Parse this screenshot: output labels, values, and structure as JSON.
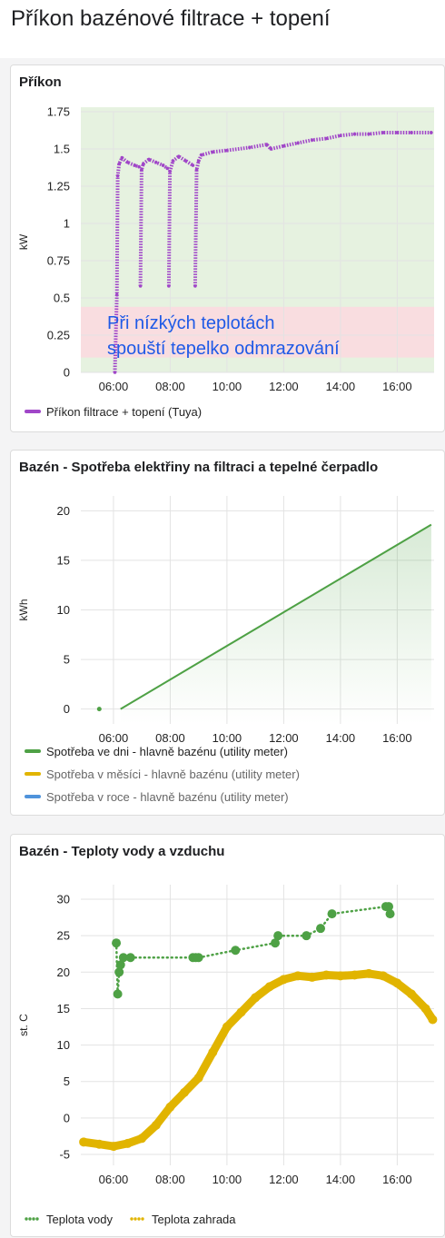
{
  "page": {
    "title": "Příkon bazénové filtrace + topení"
  },
  "colors": {
    "purple": "#a046c8",
    "green": "#4ea145",
    "yellow": "#e1b400",
    "blue": "#4f93db",
    "band_green": "#e6f2e0",
    "band_red": "#f9dde0",
    "annotation": "#1f5ae6"
  },
  "chart_data": [
    {
      "type": "scatter",
      "title": "Příkon",
      "xlabel": "",
      "ylabel": "kW",
      "x_ticks": [
        "06:00",
        "08:00",
        "10:00",
        "12:00",
        "14:00",
        "16:00"
      ],
      "y_ticks": [
        "0",
        "0.25",
        "0.5",
        "0.75",
        "1",
        "1.25",
        "1.5",
        "1.75"
      ],
      "ylim": [
        0,
        1.75
      ],
      "xlim_hours": [
        4.85,
        17.3
      ],
      "grid": true,
      "legend_position": "bottom",
      "bands": [
        {
          "from": 0.1,
          "to": 0.44,
          "color": "red"
        },
        {
          "from": 0,
          "to": 1.78,
          "color": "green"
        }
      ],
      "annotation": [
        "Při nízkých teplotách",
        "spouští tepelko odmrazování"
      ],
      "series": [
        {
          "name": "Příkon filtrace + topení (Tuya)",
          "color": "purple",
          "segments": [
            [
              [
                6.05,
                0
              ],
              [
                6.12,
                0.52
              ],
              [
                6.15,
                1.32
              ],
              [
                6.2,
                1.4
              ],
              [
                6.3,
                1.44
              ],
              [
                6.5,
                1.41
              ],
              [
                6.75,
                1.39
              ],
              [
                6.9,
                1.38
              ]
            ],
            [
              [
                6.95,
                0.58
              ],
              [
                6.99,
                1.36
              ],
              [
                7.05,
                1.4
              ],
              [
                7.25,
                1.43
              ],
              [
                7.5,
                1.41
              ],
              [
                7.75,
                1.39
              ],
              [
                7.9,
                1.37
              ]
            ],
            [
              [
                7.95,
                0.58
              ],
              [
                7.99,
                1.35
              ],
              [
                8.1,
                1.42
              ],
              [
                8.3,
                1.45
              ],
              [
                8.55,
                1.42
              ],
              [
                8.8,
                1.39
              ]
            ],
            [
              [
                8.88,
                0.58
              ],
              [
                8.93,
                1.36
              ],
              [
                9.0,
                1.42
              ],
              [
                9.1,
                1.46
              ],
              [
                9.5,
                1.48
              ],
              [
                10.0,
                1.49
              ],
              [
                10.8,
                1.51
              ],
              [
                11.4,
                1.53
              ],
              [
                11.55,
                1.5
              ],
              [
                12.0,
                1.52
              ],
              [
                12.5,
                1.54
              ],
              [
                13.0,
                1.56
              ],
              [
                13.5,
                1.57
              ],
              [
                14.0,
                1.59
              ],
              [
                14.5,
                1.6
              ],
              [
                15.0,
                1.6
              ],
              [
                15.5,
                1.61
              ],
              [
                16.0,
                1.61
              ],
              [
                16.5,
                1.61
              ],
              [
                17.2,
                1.61
              ]
            ]
          ]
        }
      ]
    },
    {
      "type": "area",
      "title": "Bazén - Spotřeba elektřiny na filtraci a tepelné čerpadlo",
      "xlabel": "",
      "ylabel": "kWh",
      "x_ticks": [
        "06:00",
        "08:00",
        "10:00",
        "12:00",
        "14:00",
        "16:00"
      ],
      "y_ticks": [
        "0",
        "5",
        "10",
        "15",
        "20"
      ],
      "ylim": [
        -1.5,
        21.5
      ],
      "xlim_hours": [
        4.85,
        17.3
      ],
      "grid": true,
      "legend_position": "bottom",
      "series": [
        {
          "name": "Spotřeba ve dni - hlavně bazénu (utility meter)",
          "color": "green",
          "points": [
            [
              6.25,
              0
            ],
            [
              17.2,
              18.6
            ]
          ],
          "start_dot": [
            5.5,
            0
          ]
        },
        {
          "name": "Spotřeba v měsíci - hlavně bazénu (utility meter)",
          "color": "yellow",
          "hidden": true
        },
        {
          "name": "Spotřeba v roce - hlavně bazénu (utility meter)",
          "color": "blue",
          "hidden": true
        }
      ]
    },
    {
      "type": "line",
      "title": "Bazén - Teploty vody a vzduchu",
      "xlabel": "",
      "ylabel": "st. C",
      "x_ticks": [
        "06:00",
        "08:00",
        "10:00",
        "12:00",
        "14:00",
        "16:00"
      ],
      "y_ticks": [
        "-5",
        "0",
        "5",
        "10",
        "15",
        "20",
        "25",
        "30"
      ],
      "ylim": [
        -6.5,
        32
      ],
      "xlim_hours": [
        4.85,
        17.3
      ],
      "grid": true,
      "legend_position": "bottom",
      "series": [
        {
          "name": "Teplota vody",
          "color": "green",
          "points": [
            [
              6.1,
              24
            ],
            [
              6.15,
              17
            ],
            [
              6.2,
              20
            ],
            [
              6.25,
              21
            ],
            [
              6.35,
              22
            ],
            [
              6.6,
              22
            ],
            [
              8.8,
              22
            ],
            [
              8.9,
              22
            ],
            [
              9.0,
              22
            ],
            [
              10.3,
              23
            ],
            [
              11.7,
              24
            ],
            [
              11.8,
              25
            ],
            [
              12.8,
              25
            ],
            [
              13.3,
              26
            ],
            [
              13.7,
              28
            ],
            [
              15.6,
              29
            ],
            [
              15.7,
              29
            ],
            [
              15.75,
              28
            ]
          ]
        },
        {
          "name": "Teplota zahrada",
          "color": "yellow",
          "points": [
            [
              4.95,
              -3.3
            ],
            [
              5.5,
              -3.6
            ],
            [
              6.0,
              -3.9
            ],
            [
              6.5,
              -3.5
            ],
            [
              7.0,
              -2.8
            ],
            [
              7.5,
              -1
            ],
            [
              8.0,
              1.5
            ],
            [
              8.5,
              3.5
            ],
            [
              9.0,
              5.5
            ],
            [
              9.5,
              9
            ],
            [
              10.0,
              12.5
            ],
            [
              10.5,
              14.5
            ],
            [
              11.0,
              16.5
            ],
            [
              11.5,
              18
            ],
            [
              12.0,
              19
            ],
            [
              12.5,
              19.5
            ],
            [
              13.0,
              19.3
            ],
            [
              13.5,
              19.6
            ],
            [
              14.0,
              19.5
            ],
            [
              14.5,
              19.6
            ],
            [
              15.0,
              19.8
            ],
            [
              15.5,
              19.5
            ],
            [
              16.0,
              18.5
            ],
            [
              16.5,
              17
            ],
            [
              17.0,
              15
            ],
            [
              17.25,
              13.5
            ]
          ]
        }
      ]
    }
  ]
}
